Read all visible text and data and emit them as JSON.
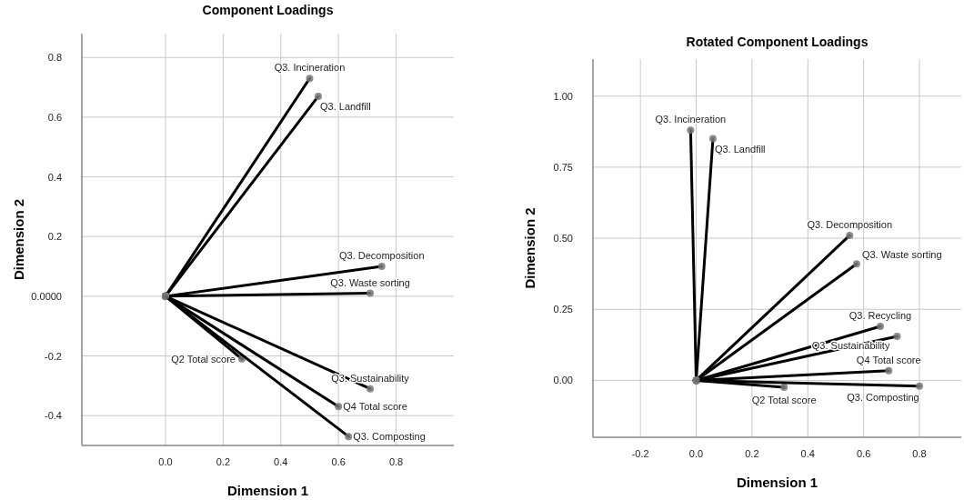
{
  "chart_data": [
    {
      "type": "line",
      "title": "Component Loadings",
      "xlabel": "Dimension 1",
      "ylabel": "Dimension 2",
      "xlim": [
        -0.29,
        1.0
      ],
      "ylim": [
        -0.5,
        0.88
      ],
      "xticks": [
        {
          "value": 0,
          "label": "0.0"
        },
        0.2,
        0.4,
        0.6,
        0.8
      ],
      "yticks": [
        -0.4,
        -0.2,
        {
          "value": 0,
          "label": "0.0000"
        },
        0.2,
        0.4,
        0.6,
        0.8
      ],
      "grid": true,
      "legend": false,
      "marker": "circle",
      "series": [
        {
          "name": "Q3. Incineration",
          "color": "#000000",
          "x": [
            0,
            0.5
          ],
          "values": [
            0,
            0.73
          ]
        },
        {
          "name": "Q3. Landfill",
          "color": "#000000",
          "x": [
            0,
            0.53
          ],
          "values": [
            0,
            0.67
          ]
        },
        {
          "name": "Q3. Decomposition",
          "color": "#000000",
          "x": [
            0,
            0.75
          ],
          "values": [
            0,
            0.1
          ]
        },
        {
          "name": "Q3. Waste sorting",
          "color": "#000000",
          "x": [
            0,
            0.71
          ],
          "values": [
            0,
            0.01
          ]
        },
        {
          "name": "Q2 Total score",
          "color": "#000000",
          "x": [
            0,
            0.265
          ],
          "values": [
            0,
            -0.21
          ]
        },
        {
          "name": "Q3. Sustainability",
          "color": "#000000",
          "x": [
            0,
            0.71
          ],
          "values": [
            0,
            -0.31
          ]
        },
        {
          "name": "Q4 Total score",
          "color": "#000000",
          "x": [
            0,
            0.6
          ],
          "values": [
            0,
            -0.37
          ]
        },
        {
          "name": "Q3. Composting",
          "color": "#000000",
          "x": [
            0,
            0.635
          ],
          "values": [
            0,
            -0.47
          ]
        }
      ]
    },
    {
      "type": "line",
      "title": "Rotated Component Loadings",
      "xlabel": "Dimension 1",
      "ylabel": "Dimension 2",
      "xlim": [
        -0.37,
        0.95
      ],
      "ylim": [
        -0.2,
        1.13
      ],
      "xticks": [
        -0.2,
        {
          "value": 0,
          "label": "0.0"
        },
        0.2,
        0.4,
        0.6,
        0.8
      ],
      "yticks": [
        {
          "value": 0,
          "label": "0.00"
        },
        0.25,
        {
          "value": 0.5,
          "label": "0.50"
        },
        0.75,
        {
          "value": 1,
          "label": "1.00"
        }
      ],
      "grid": true,
      "legend": false,
      "marker": "circle",
      "series": [
        {
          "name": "Q3. Incineration",
          "color": "#000000",
          "x": [
            0,
            -0.02
          ],
          "values": [
            0,
            0.88
          ]
        },
        {
          "name": "Q3. Landfill",
          "color": "#000000",
          "x": [
            0,
            0.06
          ],
          "values": [
            0,
            0.85
          ]
        },
        {
          "name": "Q3. Decomposition",
          "color": "#000000",
          "x": [
            0,
            0.55
          ],
          "values": [
            0,
            0.51
          ]
        },
        {
          "name": "Q3. Waste sorting",
          "color": "#000000",
          "x": [
            0,
            0.575
          ],
          "values": [
            0,
            0.41
          ]
        },
        {
          "name": "Q3. Recycling",
          "color": "#000000",
          "x": [
            0,
            0.66
          ],
          "values": [
            0,
            0.19
          ]
        },
        {
          "name": "Q3. Sustainability",
          "color": "#000000",
          "x": [
            0,
            0.72
          ],
          "values": [
            0,
            0.155
          ]
        },
        {
          "name": "Q4 Total score",
          "color": "#000000",
          "x": [
            0,
            0.69
          ],
          "values": [
            0,
            0.034
          ]
        },
        {
          "name": "Q2 Total score",
          "color": "#000000",
          "x": [
            0,
            0.315
          ],
          "values": [
            0,
            -0.024
          ]
        },
        {
          "name": "Q3. Composting",
          "color": "#000000",
          "x": [
            0,
            0.8
          ],
          "values": [
            0,
            -0.02
          ]
        }
      ]
    }
  ]
}
